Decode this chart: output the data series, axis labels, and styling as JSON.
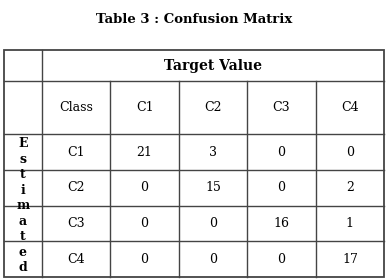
{
  "title": "Table 3 : Confusion Matrix",
  "col_header_label": "Target Value",
  "row_header_label": "E\ns\nt\ni\nm\na\nt\ne\nd",
  "col_headers": [
    "Class",
    "C1",
    "C2",
    "C3",
    "C4"
  ],
  "row_labels": [
    "C1",
    "C2",
    "C3",
    "C4"
  ],
  "matrix": [
    [
      21,
      3,
      0,
      0
    ],
    [
      0,
      15,
      0,
      2
    ],
    [
      0,
      0,
      16,
      1
    ],
    [
      0,
      0,
      0,
      17
    ]
  ],
  "bg_color": "#ffffff",
  "border_color": "#444444",
  "text_color": "#000000",
  "title_fontsize": 9.5,
  "header_fontsize": 9,
  "cell_fontsize": 9,
  "estimated_fontsize": 9
}
